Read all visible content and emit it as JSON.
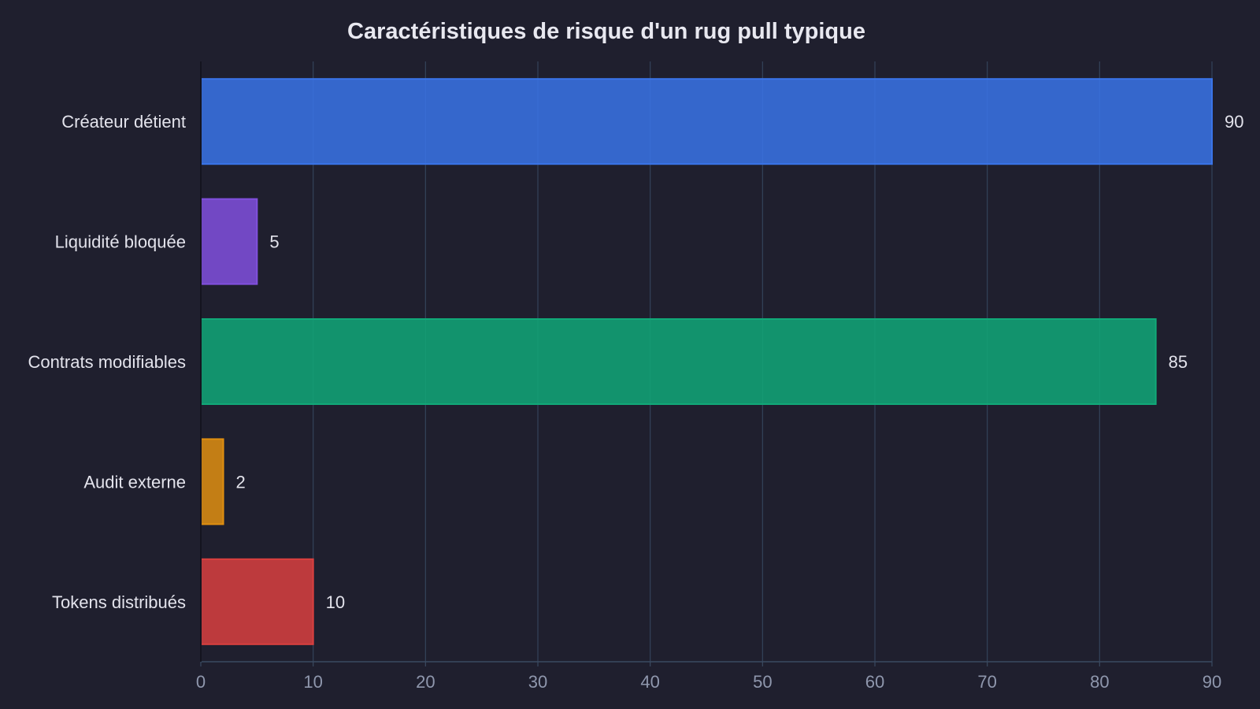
{
  "chart_data": {
    "type": "bar",
    "orientation": "horizontal",
    "title": "Caractéristiques de risque d'un rug pull typique",
    "xlabel": "",
    "ylabel": "",
    "categories": [
      "Créateur détient",
      "Liquidité bloquée",
      "Contrats modifiables",
      "Audit externe",
      "Tokens distribués"
    ],
    "values": [
      90,
      5,
      85,
      2,
      10
    ],
    "value_labels": [
      "90",
      "5",
      "85",
      "2",
      "10"
    ],
    "xlim": [
      0,
      90
    ],
    "x_ticks": [
      0,
      10,
      20,
      30,
      40,
      50,
      60,
      70,
      80,
      90
    ],
    "x_tick_labels": [
      "0",
      "10",
      "20",
      "30",
      "40",
      "50",
      "60",
      "70",
      "80",
      "90"
    ],
    "grid": "vertical",
    "legend": "none",
    "colors": [
      "#3a74e8",
      "#8150de",
      "#11a878",
      "#e08f10",
      "#d9403f"
    ]
  },
  "theme": {
    "background": "#1f1f2e",
    "grid_color": "#34435a",
    "axis_color": "#3a4a60"
  }
}
